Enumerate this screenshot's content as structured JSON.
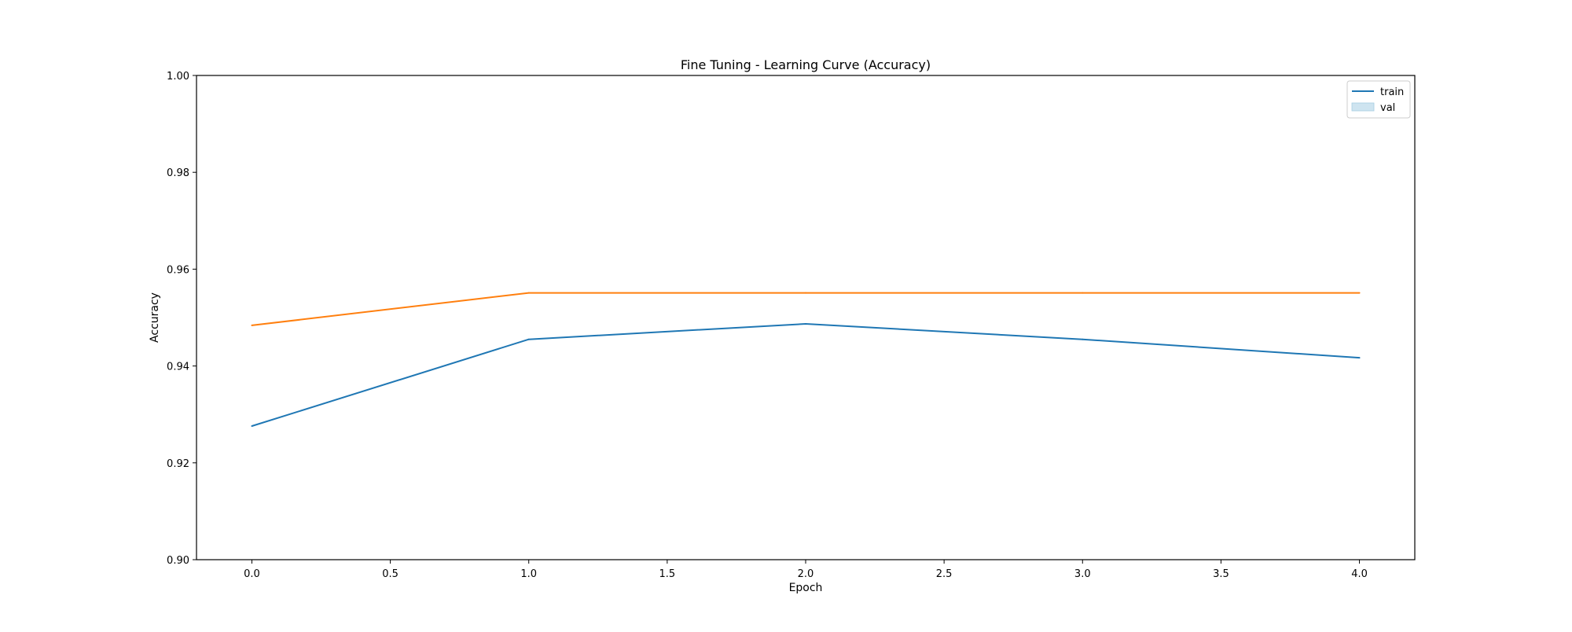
{
  "chart_data": {
    "type": "line",
    "title": "Fine Tuning - Learning Curve (Accuracy)",
    "xlabel": "Epoch",
    "ylabel": "Accuracy",
    "xlim": [
      -0.2,
      4.2
    ],
    "ylim": [
      0.9,
      1.0
    ],
    "xticks": [
      "0.0",
      "0.5",
      "1.0",
      "1.5",
      "2.0",
      "2.5",
      "3.0",
      "3.5",
      "4.0"
    ],
    "yticks": [
      "0.90",
      "0.92",
      "0.94",
      "0.96",
      "0.98",
      "1.00"
    ],
    "x": [
      0,
      1,
      2,
      3,
      4
    ],
    "series": [
      {
        "name": "train",
        "color": "#1f77b4",
        "values": [
          0.9276,
          0.9455,
          0.9487,
          0.9455,
          0.9417
        ]
      },
      {
        "name": "val",
        "color": "#ff7f0e",
        "values": [
          0.9484,
          0.9551,
          0.9551,
          0.9551,
          0.9551
        ]
      }
    ],
    "legend": {
      "position": "top-right",
      "entries": [
        {
          "label": "train",
          "symbol": "line",
          "color": "#1f77b4"
        },
        {
          "label": "val",
          "symbol": "patch",
          "color": "#a6cee3"
        }
      ]
    },
    "grid": false
  }
}
